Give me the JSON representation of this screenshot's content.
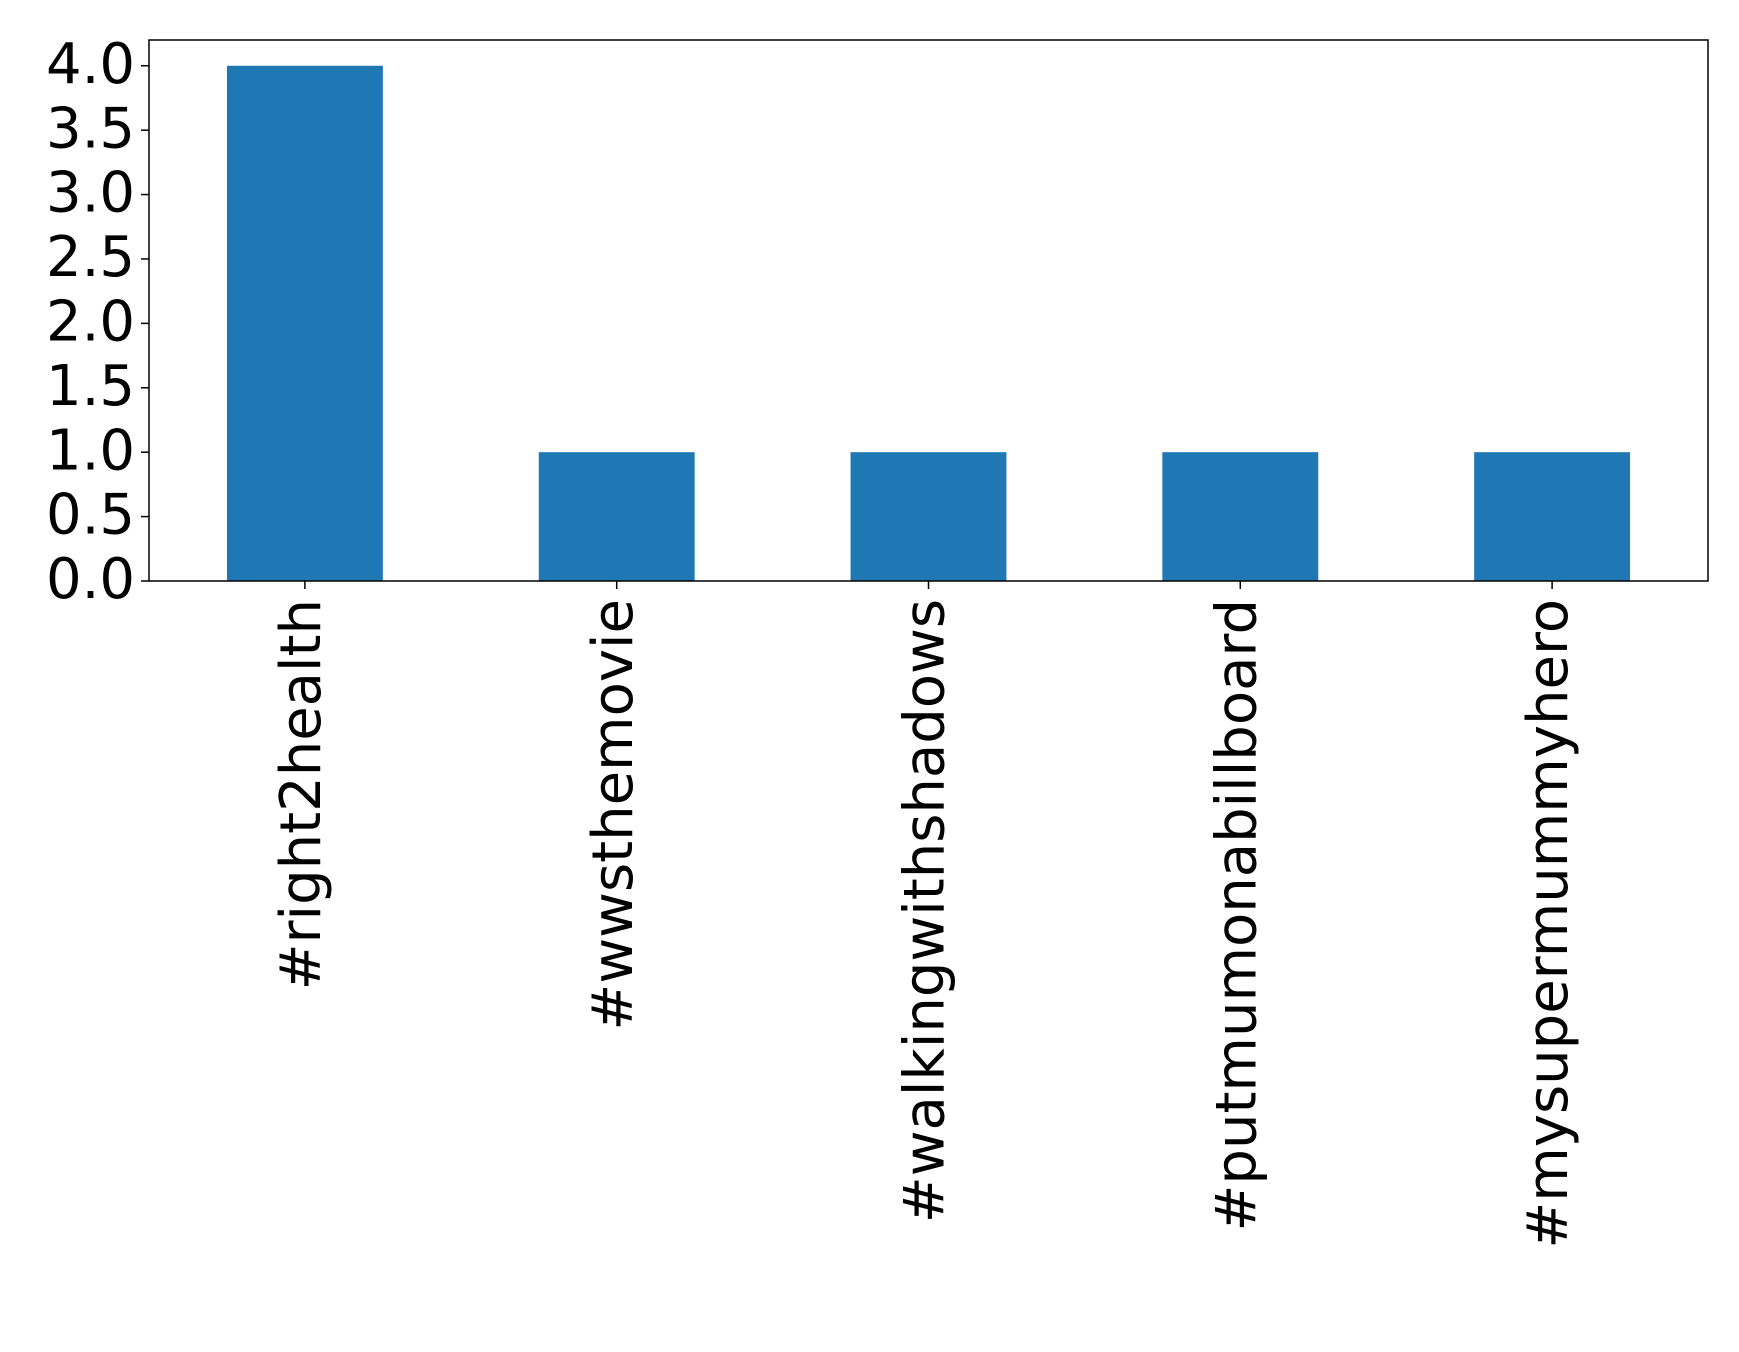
{
  "chart_data": {
    "type": "bar",
    "categories": [
      "#right2health",
      "#wwsthemovie",
      "#walkingwithshadows",
      "#putmumonabillboard",
      "#mysupermummyhero"
    ],
    "values": [
      4,
      1,
      1,
      1,
      1
    ],
    "color": "#1f77b4",
    "ylim": [
      0,
      4.2
    ],
    "yticks": [
      {
        "value": 0,
        "label": "0.0"
      },
      0.5,
      {
        "value": 1,
        "label": "1.0"
      },
      1.5,
      {
        "value": 2,
        "label": "2.0"
      },
      2.5,
      {
        "value": 3,
        "label": "3.0"
      },
      3.5,
      {
        "value": 4,
        "label": "4.0"
      }
    ],
    "grid": false
  }
}
